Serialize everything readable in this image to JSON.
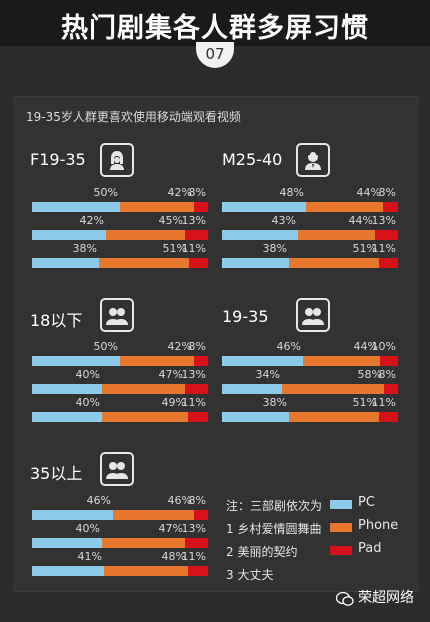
{
  "header": {
    "title": "热门剧集各人群多屏习惯",
    "badge": "07"
  },
  "subtitle": "19-35岁人群更喜欢使用移动端观看视频",
  "colors": {
    "pc": "#8ccaea",
    "phone": "#e8772e",
    "pad": "#d6111a"
  },
  "legend": {
    "note": "注：三部剧依次为",
    "shows": [
      "1 乡村爱情圆舞曲",
      "2 美丽的契约",
      "3 大丈夫"
    ],
    "items": [
      "PC",
      "Phone",
      "Pad"
    ]
  },
  "watermark": "荣超网络",
  "chart_data": [
    {
      "type": "bar",
      "group": "F19-35",
      "icon": "female-icon",
      "series_order": [
        "PC",
        "Phone",
        "Pad"
      ],
      "rows": [
        {
          "values": [
            50,
            42,
            8
          ],
          "labels": [
            "50%",
            "42%",
            "8%"
          ]
        },
        {
          "values": [
            42,
            45,
            13
          ],
          "labels": [
            "42%",
            "45%",
            "13%"
          ]
        },
        {
          "values": [
            38,
            51,
            11
          ],
          "labels": [
            "38%",
            "51%",
            "11%"
          ]
        }
      ]
    },
    {
      "type": "bar",
      "group": "M25-40",
      "icon": "male-icon",
      "series_order": [
        "PC",
        "Phone",
        "Pad"
      ],
      "rows": [
        {
          "values": [
            48,
            44,
            8
          ],
          "labels": [
            "48%",
            "44%",
            "8%"
          ]
        },
        {
          "values": [
            43,
            44,
            13
          ],
          "labels": [
            "43%",
            "44%",
            "13%"
          ]
        },
        {
          "values": [
            38,
            51,
            11
          ],
          "labels": [
            "38%",
            "51%",
            "11%"
          ]
        }
      ]
    },
    {
      "type": "bar",
      "group": "18以下",
      "icon": "kids-icon",
      "series_order": [
        "PC",
        "Phone",
        "Pad"
      ],
      "rows": [
        {
          "values": [
            50,
            42,
            8
          ],
          "labels": [
            "50%",
            "42%",
            "8%"
          ]
        },
        {
          "values": [
            40,
            47,
            13
          ],
          "labels": [
            "40%",
            "47%",
            "13%"
          ]
        },
        {
          "values": [
            40,
            49,
            11
          ],
          "labels": [
            "40%",
            "49%",
            "11%"
          ]
        }
      ]
    },
    {
      "type": "bar",
      "group": "19-35",
      "icon": "couple-icon",
      "series_order": [
        "PC",
        "Phone",
        "Pad"
      ],
      "rows": [
        {
          "values": [
            46,
            44,
            10
          ],
          "labels": [
            "46%",
            "44%",
            "10%"
          ]
        },
        {
          "values": [
            34,
            58,
            8
          ],
          "labels": [
            "34%",
            "58%",
            "8%"
          ]
        },
        {
          "values": [
            38,
            51,
            11
          ],
          "labels": [
            "38%",
            "51%",
            "11%"
          ]
        }
      ]
    },
    {
      "type": "bar",
      "group": "35以上",
      "icon": "adults-icon",
      "series_order": [
        "PC",
        "Phone",
        "Pad"
      ],
      "rows": [
        {
          "values": [
            46,
            46,
            8
          ],
          "labels": [
            "46%",
            "46%",
            "8%"
          ]
        },
        {
          "values": [
            40,
            47,
            13
          ],
          "labels": [
            "40%",
            "47%",
            "13%"
          ]
        },
        {
          "values": [
            41,
            48,
            11
          ],
          "labels": [
            "41%",
            "48%",
            "11%"
          ]
        }
      ]
    }
  ]
}
